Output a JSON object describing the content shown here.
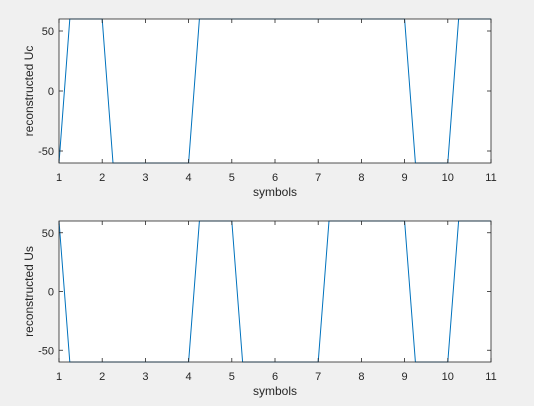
{
  "chart_data": [
    {
      "type": "line",
      "xlabel": "symbols",
      "ylabel": "reconstructed Uc",
      "xlim": [
        1,
        11
      ],
      "ylim": [
        -60,
        60
      ],
      "xticks": [
        "1",
        "2",
        "3",
        "4",
        "5",
        "6",
        "7",
        "8",
        "9",
        "10",
        "11"
      ],
      "yticks": [
        "-50",
        "0",
        "50"
      ],
      "ytick_values": [
        -50,
        0,
        50
      ],
      "grid": false,
      "color": "#0072bd",
      "series": [
        {
          "x": [
            1,
            1.25,
            2,
            2.25,
            3,
            3.25,
            4,
            4.25,
            5,
            5.25,
            6,
            6.25,
            7,
            7.25,
            8,
            8.25,
            9,
            9.25,
            10,
            10.25,
            11
          ],
          "y": [
            -60,
            60,
            60,
            -60,
            -60,
            -60,
            -60,
            60,
            60,
            60,
            60,
            60,
            60,
            60,
            60,
            60,
            60,
            -60,
            -60,
            60,
            60
          ]
        }
      ]
    },
    {
      "type": "line",
      "xlabel": "symbols",
      "ylabel": "reconstructed Us",
      "xlim": [
        1,
        11
      ],
      "ylim": [
        -60,
        60
      ],
      "xticks": [
        "1",
        "2",
        "3",
        "4",
        "5",
        "6",
        "7",
        "8",
        "9",
        "10",
        "11"
      ],
      "yticks": [
        "-50",
        "0",
        "50"
      ],
      "ytick_values": [
        -50,
        0,
        50
      ],
      "grid": false,
      "color": "#0072bd",
      "series": [
        {
          "x": [
            1,
            1.25,
            2,
            2.25,
            3,
            3.25,
            4,
            4.25,
            5,
            5.25,
            6,
            6.25,
            7,
            7.25,
            8,
            8.25,
            9,
            9.25,
            10,
            10.25,
            11
          ],
          "y": [
            60,
            -60,
            -60,
            -60,
            -60,
            -60,
            -60,
            60,
            60,
            -60,
            -60,
            -60,
            -60,
            60,
            60,
            60,
            60,
            -60,
            -60,
            60,
            60
          ]
        }
      ]
    }
  ]
}
